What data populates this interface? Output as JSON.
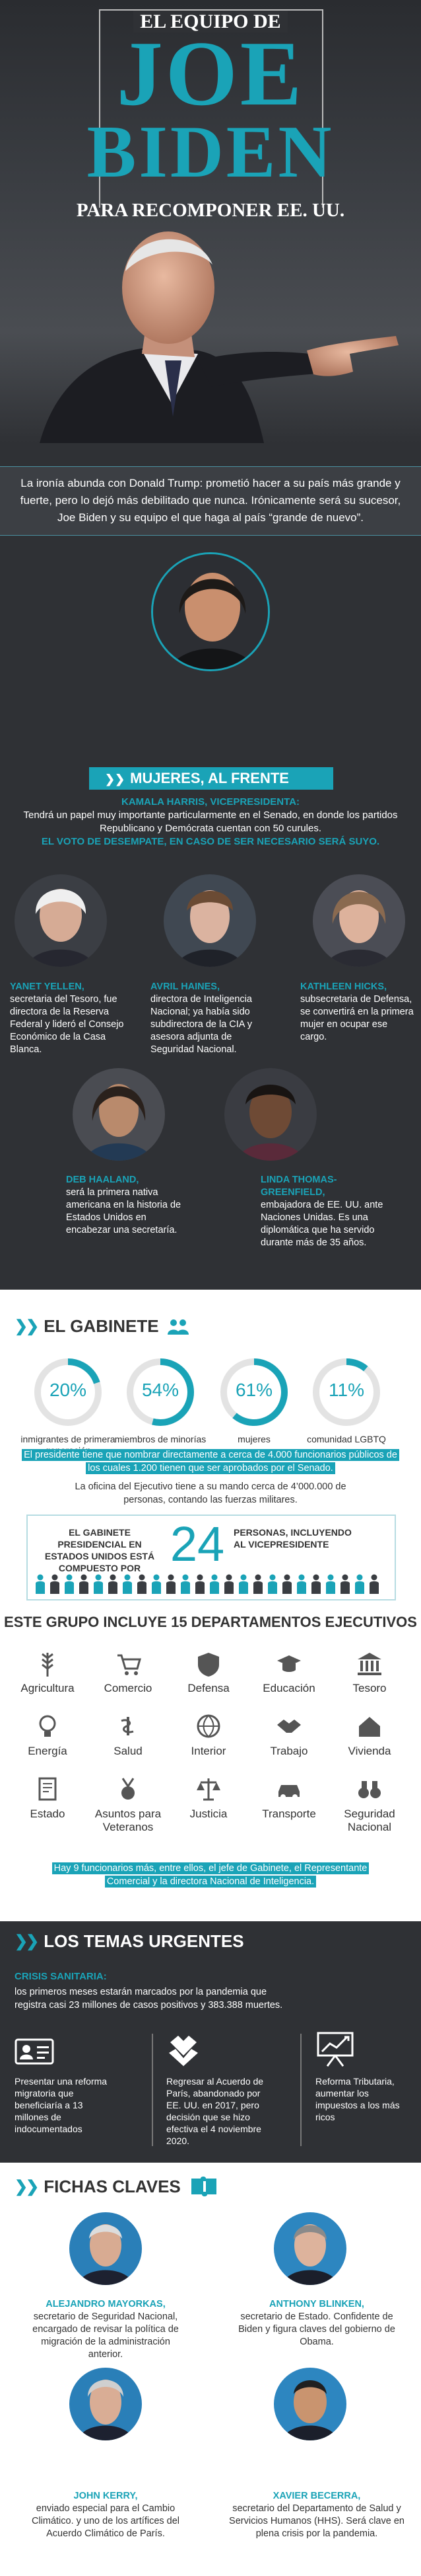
{
  "header": {
    "top_line": "EL EQUIPO DE",
    "name_first": "JOE",
    "name_last": "BIDEN",
    "subtitle": "PARA RECOMPONER EE. UU."
  },
  "intro": "La ironía abunda con Donald Trump: prometió hacer a su país más grande y fuerte, pero lo dejó más debilitado que nunca. Irónicamente será su sucesor, Joe Biden y su equipo el que haga al país “grande de nuevo”.",
  "women": {
    "banner": "MUJERES, AL FRENTE",
    "harris_name": "KAMALA HARRIS, VICEPRESIDENTA:",
    "harris_text": "Tendrá un papel muy importante particularmente en el Senado, en donde los partidos Republicano y Demócrata cuentan con 50 curules.",
    "harris_highlight": "EL VOTO DE DESEMPATE, EN CASO DE SER NECESARIO SERÁ SUYO.",
    "people": [
      {
        "name": "YANET YELLEN,",
        "text": "secretaria del Tesoro, fue directora de la Reserva Federal y lideró el Consejo Económico de la Casa Blanca."
      },
      {
        "name": "AVRIL HAINES,",
        "text": "directora de Inteligencia Nacional; ya había sido subdirectora de la CIA y asesora adjunta de Seguridad Nacional."
      },
      {
        "name": "KATHLEEN HICKS,",
        "text": "subsecretaria de Defensa, se convertirá en la primera mujer en ocupar ese cargo."
      },
      {
        "name": "DEB HAALAND,",
        "text": "será la primera nativa americana en la historia de Estados Unidos en encabezar una secretaría."
      },
      {
        "name": "LINDA THOMAS-GREENFIELD,",
        "text": "embajadora de EE. UU. ante Naciones Unidas. Es una diplomática que ha servido durante más de 35 años."
      }
    ]
  },
  "gabinete": {
    "title": "EL GABINETE",
    "stats": [
      {
        "value": "20%",
        "fraction": 0.2,
        "label": "inmigrantes de primera generación"
      },
      {
        "value": "54%",
        "fraction": 0.54,
        "label": "miembros de minorías"
      },
      {
        "value": "61%",
        "fraction": 0.61,
        "label": "mujeres"
      },
      {
        "value": "11%",
        "fraction": 0.11,
        "label": "comunidad LGBTQ"
      }
    ],
    "highlight": "El presidente tiene que nombrar directamente a cerca de 4.000 funcionarios públicos de los cuales 1.200 tienen que ser aprobados por el Senado.",
    "office_text": "La oficina del Ejecutivo tiene a su mando cerca de 4’000.000 de personas, contando las fuerzas militares.",
    "box_left": "EL GABINETE PRESIDENCIAL EN ESTADOS UNIDOS ESTÁ COMPUESTO POR",
    "box_number": "24",
    "box_right": "PERSONAS, INCLUYENDO AL VICEPRESIDENTE",
    "people_count": 24,
    "departments_title": "ESTE GRUPO INCLUYE 15 DEPARTAMENTOS EJECUTIVOS",
    "departments": [
      {
        "label": "Agricultura",
        "icon": "wheat-icon"
      },
      {
        "label": "Comercio",
        "icon": "cart-icon"
      },
      {
        "label": "Defensa",
        "icon": "shield-icon"
      },
      {
        "label": "Educación",
        "icon": "graduation-cap-icon"
      },
      {
        "label": "Tesoro",
        "icon": "bank-icon"
      },
      {
        "label": "Energía",
        "icon": "lightbulb-icon"
      },
      {
        "label": "Salud",
        "icon": "health-icon"
      },
      {
        "label": "Interior",
        "icon": "globe-icon"
      },
      {
        "label": "Trabajo",
        "icon": "handshake-icon"
      },
      {
        "label": "Vivienda",
        "icon": "house-icon"
      },
      {
        "label": "Estado",
        "icon": "document-icon"
      },
      {
        "label": "Asuntos para Veteranos",
        "icon": "medal-icon"
      },
      {
        "label": "Justicia",
        "icon": "scales-icon"
      },
      {
        "label": "Transporte",
        "icon": "car-icon"
      },
      {
        "label": "Seguridad Nacional",
        "icon": "binoculars-icon"
      }
    ],
    "funcionarios_highlight": "Hay 9 funcionarios más, entre ellos, el jefe de Gabinete, el Representante Comercial y la directora Nacional de Inteligencia."
  },
  "urgentes": {
    "title": "LOS TEMAS URGENTES",
    "crisis_label": "CRISIS SANITARIA:",
    "crisis_text": "los primeros meses estarán marcados por la pandemia que registra casi 23 millones de casos positivos y 383.388 muertes.",
    "items": [
      {
        "icon": "id-card-icon",
        "text": "Presentar una reforma migratoria que beneficiaría a 13 millones de indocumentados"
      },
      {
        "icon": "helping-hands-icon",
        "text": "Regresar al Acuerdo de París, abandonado por EE. UU. en 2017, pero decisión que se hizo efectiva el 4 noviembre 2020."
      },
      {
        "icon": "presentation-chart-icon",
        "text": "Reforma Tributaria, aumentar los impuestos a los más ricos"
      }
    ]
  },
  "fichas": {
    "title": "FICHAS CLAVES",
    "people": [
      {
        "name": "ALEJANDRO MAYORKAS,",
        "text": "secretario de Seguridad Nacional, encargado de revisar la política de migración de la administración anterior."
      },
      {
        "name": "ANTHONY BLINKEN,",
        "text": "secretario de Estado. Confidente de Biden y figura claves del gobierno de Obama."
      },
      {
        "name": "JOHN KERRY,",
        "text": "enviado especial para el Cambio Climático. y uno de los artífices del Acuerdo Climático de París."
      },
      {
        "name": "XAVIER BECERRA,",
        "text": "secretario del Departamento de Salud y Servicios Humanos (HHS). Será clave en plena crisis por la pandemia."
      }
    ]
  }
}
